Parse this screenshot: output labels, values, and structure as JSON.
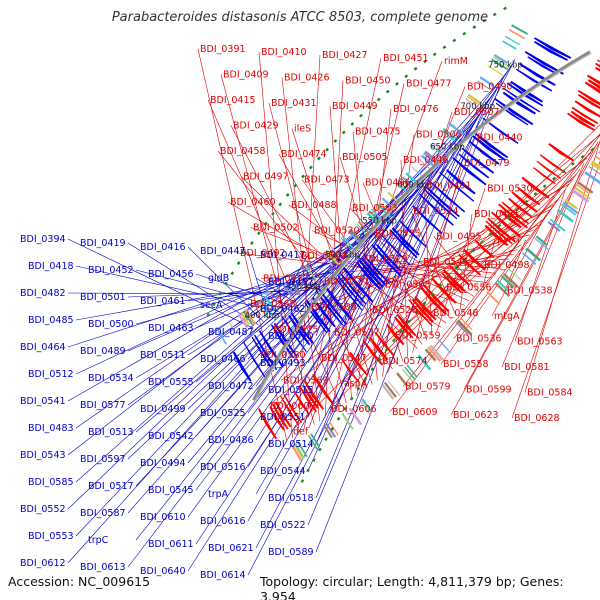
{
  "title": "Parabacteroides distasonis ATCC 8503, complete genome",
  "footer": {
    "accession": "Accession: NC_009615",
    "summary": "Topology: circular; Length: 4,811,379 bp; Genes: 3,954"
  },
  "colors": {
    "forward_strand": "#ff0000",
    "reverse_strand": "#0000ee",
    "backbone": "#8a8a8a",
    "tick_dots": "#1a8a1a",
    "highlight_label": "#33bbee",
    "footer_text": "#111111"
  },
  "scale_ticks": [
    "400 kbp",
    "450 kbp",
    "500 kbp",
    "550 kbp",
    "600 kbp",
    "650 kbp",
    "700 kbp",
    "750 kbp"
  ],
  "forward_labels": [
    "BDI_0391",
    "BDI_0410",
    "BDI_0427",
    "BDI_0451",
    "rimM",
    "BDI_0409",
    "BDI_0426",
    "BDI_0450",
    "BDI_0477",
    "BDI_0490",
    "BDI_0415",
    "BDI_0431",
    "BDI_0449",
    "BDI_0476",
    "BDI_0507",
    "BDI_0429",
    "ileS",
    "BDI_0475",
    "BDI_0506",
    "BDI_0440",
    "BDI_0458",
    "BDI_0474",
    "BDI_0505",
    "BDI_0446",
    "BDI_0479",
    "BDI_0497",
    "BDI_0473",
    "BDI_0496",
    "BDI_0491",
    "BDI_0530",
    "BDI_0460",
    "BDI_0488",
    "BDI_0503",
    "BDI_0524",
    "BDI_0481",
    "BDI_0502",
    "BDI_0520",
    "BDI_0535",
    "BDI_0495",
    "pyrG",
    "BDI_0492",
    "BDI_0504",
    "BDI_0529",
    "BDI_0546",
    "BDI_0498",
    "BDI_0532",
    "BDI_0521",
    "BDI_0508",
    "BDI_0556",
    "BDI_0538",
    "BDI_0565",
    "BDI_0509",
    "BDI_0526",
    "BDI_0548",
    "mtgA",
    "BDI_0575",
    "BDI_0537",
    "BDI_0559",
    "BDI_0536",
    "BDI_0563",
    "BDI_0580",
    "BDI_0547",
    "BDI_0574",
    "BDI_0558",
    "BDI_0581",
    "BDI_0569",
    "aspA",
    "BDI_0579",
    "BDI_0599",
    "BDI_0584",
    "BDI_0600",
    "BDI_0606",
    "BDI_0609",
    "BDI_0623",
    "BDI_0628",
    "def"
  ],
  "reverse_labels": [
    "BDI_0394",
    "BDI_0419",
    "BDI_0416",
    "BDI_0447",
    "BDI_0417",
    "BDI_0418",
    "BDI_0452",
    "BDI_0456",
    "gldB",
    "BDI_0457",
    "BDI_0482",
    "BDI_0501",
    "BDI_0461",
    "secA",
    "BDI_0462",
    "BDI_0485",
    "BDI_0500",
    "BDI_0463",
    "BDI_0487",
    "BDI_0510",
    "BDI_0464",
    "BDI_0489",
    "BDI_0511",
    "BDI_0466",
    "BDI_0493",
    "BDI_0512",
    "BDI_0534",
    "BDI_0555",
    "BDI_0472",
    "BDI_0515",
    "BDI_0541",
    "BDI_0577",
    "BDI_0499",
    "BDI_0525",
    "BDI_0551",
    "BDI_0483",
    "BDI_0513",
    "BDI_0542",
    "BDI_0486",
    "BDI_0514",
    "BDI_0543",
    "BDI_0597",
    "BDI_0494",
    "BDI_0516",
    "BDI_0544",
    "BDI_0585",
    "BDI_0517",
    "BDI_0545",
    "trpA",
    "BDI_0518",
    "BDI_0552",
    "BDI_0587",
    "BDI_0610",
    "BDI_0616",
    "BDI_0522",
    "BDI_0553",
    "trpC",
    "BDI_0611",
    "BDI_0621",
    "BDI_0589",
    "BDI_0612",
    "BDI_0613",
    "BDI_0640",
    "BDI_0614"
  ]
}
